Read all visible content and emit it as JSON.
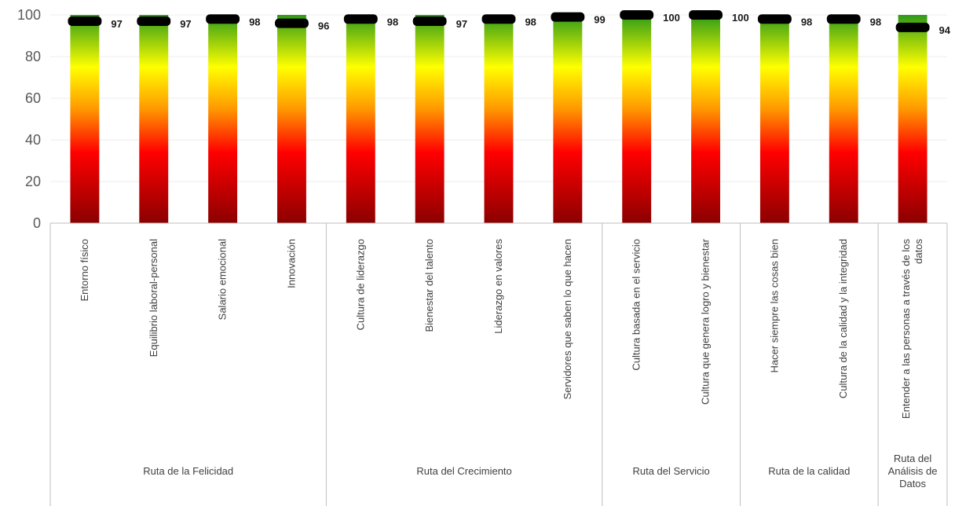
{
  "chart_data": {
    "type": "bar",
    "title": "",
    "xlabel": "",
    "ylabel": "",
    "ylim": [
      0,
      100
    ],
    "yticks": [
      0,
      20,
      40,
      60,
      80,
      100
    ],
    "grid": true,
    "legend": "none",
    "bar_fill": "vertical gradient from dark red (bottom) through red, orange, yellow to green (top)",
    "marker": "black horizontal dash at each value",
    "colors": {
      "gradient_bottom": "#8b0000",
      "gradient_red": "#ff0000",
      "gradient_orange": "#ff9900",
      "gradient_yellow": "#ffff00",
      "gradient_green": "#2e9a18",
      "marker": "#000000",
      "axis": "#bfbfbf",
      "gridline": "#ededed"
    },
    "categories": [
      "Entorno físico",
      "Equilibrio laboral-personal",
      "Salario emocional",
      "Innovación",
      "Cultura de liderazgo",
      "Bienestar del talento",
      "Liderazgo en valores",
      "Servidores que saben lo que hacen",
      "Cultura basada en el servicio",
      "Cultura que genera logro y bienestar",
      "Hacer siempre las cosas bien",
      "Cultura de la calidad y la integridad",
      "Entender a las personas a través de los datos"
    ],
    "category_label_lines": [
      [
        "Entorno físico"
      ],
      [
        "Equilibrio laboral-personal"
      ],
      [
        "Salario emocional"
      ],
      [
        "Innovación"
      ],
      [
        "Cultura de liderazgo"
      ],
      [
        "Bienestar del talento"
      ],
      [
        "Liderazgo en valores"
      ],
      [
        "Servidores que saben lo que hacen"
      ],
      [
        "Cultura basada en el servicio"
      ],
      [
        "Cultura que genera logro y bienestar"
      ],
      [
        "Hacer siempre las cosas bien"
      ],
      [
        "Cultura de la calidad y la integridad"
      ],
      [
        "Entender a las personas a través de los",
        "datos"
      ]
    ],
    "values": [
      97,
      97,
      98,
      96,
      98,
      97,
      98,
      99,
      100,
      100,
      98,
      98,
      94
    ],
    "data_labels": [
      "97",
      "97",
      "98",
      "96",
      "98",
      "97",
      "98",
      "99",
      "100",
      "100",
      "98",
      "98",
      "94"
    ],
    "groups": [
      {
        "name": "Ruta de la Felicidad",
        "name_lines": [
          "Ruta de la Felicidad"
        ],
        "start": 0,
        "end": 3
      },
      {
        "name": "Ruta del Crecimiento",
        "name_lines": [
          "Ruta del Crecimiento"
        ],
        "start": 4,
        "end": 7
      },
      {
        "name": "Ruta del Servicio",
        "name_lines": [
          "Ruta del Servicio"
        ],
        "start": 8,
        "end": 9
      },
      {
        "name": "Ruta de la calidad",
        "name_lines": [
          "Ruta de la calidad"
        ],
        "start": 10,
        "end": 11
      },
      {
        "name": "Ruta del Análisis de Datos",
        "name_lines": [
          "Ruta del",
          "Análisis de",
          "Datos"
        ],
        "start": 12,
        "end": 12
      }
    ]
  }
}
